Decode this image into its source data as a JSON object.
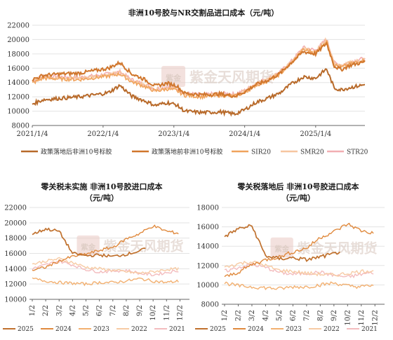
{
  "watermark": {
    "text": "紫金天风期货",
    "seal": "紫金"
  },
  "chart_data": [
    {
      "type": "line",
      "title": "非洲10号胶与NR交割品进口成本（元/吨）",
      "x_ticks": [
        "2021/1/4",
        "2022/1/4",
        "2023/1/4",
        "2024/1/4",
        "2025/1/4"
      ],
      "x_range": [
        "2021-01-04",
        "2025-09-15"
      ],
      "ylim": [
        8000,
        22000
      ],
      "y_ticks": [
        8000,
        10000,
        12000,
        14000,
        16000,
        18000,
        20000,
        22000
      ],
      "grid": true,
      "legend": "bottom",
      "series": [
        {
          "name": "政策落地后非洲10号标胶",
          "color": "#b86a2a",
          "points": [
            [
              "2021-01-04",
              11000
            ],
            [
              "2021-03-01",
              11600
            ],
            [
              "2021-06-01",
              11800
            ],
            [
              "2021-09-01",
              12000
            ],
            [
              "2021-12-01",
              12300
            ],
            [
              "2022-02-01",
              12600
            ],
            [
              "2022-04-01",
              13600
            ],
            [
              "2022-06-01",
              12100
            ],
            [
              "2022-08-01",
              11500
            ],
            [
              "2022-10-01",
              10800
            ],
            [
              "2022-12-01",
              11200
            ],
            [
              "2023-01-15",
              10900
            ],
            [
              "2023-03-01",
              10000
            ],
            [
              "2023-06-01",
              9800
            ],
            [
              "2023-09-01",
              9900
            ],
            [
              "2023-11-15",
              9600
            ],
            [
              "2024-01-04",
              10200
            ],
            [
              "2024-03-01",
              11200
            ],
            [
              "2024-05-01",
              11800
            ],
            [
              "2024-07-01",
              12500
            ],
            [
              "2024-09-01",
              13800
            ],
            [
              "2024-11-01",
              14800
            ],
            [
              "2025-01-04",
              14600
            ],
            [
              "2025-03-01",
              15900
            ],
            [
              "2025-04-10",
              13200
            ],
            [
              "2025-05-15",
              13000
            ],
            [
              "2025-07-01",
              13300
            ],
            [
              "2025-09-15",
              13700
            ]
          ]
        },
        {
          "name": "政策落地前非洲10号标胶",
          "color": "#d0762c",
          "points": [
            [
              "2021-01-04",
              14400
            ],
            [
              "2021-03-01",
              15000
            ],
            [
              "2021-06-01",
              15200
            ],
            [
              "2021-09-01",
              15300
            ],
            [
              "2021-12-01",
              15700
            ],
            [
              "2022-02-01",
              16000
            ],
            [
              "2022-04-01",
              16800
            ],
            [
              "2022-06-01",
              15200
            ],
            [
              "2022-08-01",
              14500
            ],
            [
              "2022-10-01",
              13500
            ],
            [
              "2022-12-01",
              13900
            ],
            [
              "2023-01-15",
              13600
            ],
            [
              "2023-03-01",
              12500
            ],
            [
              "2023-06-01",
              12300
            ],
            [
              "2023-09-01",
              12400
            ],
            [
              "2023-11-15",
              12100
            ],
            [
              "2024-01-04",
              12700
            ],
            [
              "2024-03-01",
              13700
            ],
            [
              "2024-05-01",
              14300
            ],
            [
              "2024-07-01",
              15200
            ],
            [
              "2024-09-01",
              16800
            ],
            [
              "2024-11-01",
              18300
            ],
            [
              "2025-01-04",
              18000
            ],
            [
              "2025-03-01",
              19500
            ],
            [
              "2025-04-10",
              16300
            ],
            [
              "2025-05-15",
              15800
            ],
            [
              "2025-07-01",
              16400
            ],
            [
              "2025-09-15",
              16900
            ]
          ]
        },
        {
          "name": "SIR20",
          "color": "#f0a35c",
          "points": [
            [
              "2021-01-04",
              13900
            ],
            [
              "2021-03-01",
              14600
            ],
            [
              "2021-06-01",
              14500
            ],
            [
              "2021-09-01",
              14400
            ],
            [
              "2021-12-01",
              14700
            ],
            [
              "2022-02-01",
              14900
            ],
            [
              "2022-04-01",
              15200
            ],
            [
              "2022-06-01",
              14100
            ],
            [
              "2022-08-01",
              13500
            ],
            [
              "2022-10-01",
              12800
            ],
            [
              "2022-12-01",
              13100
            ],
            [
              "2023-01-15",
              12900
            ],
            [
              "2023-03-01",
              12200
            ],
            [
              "2023-06-01",
              12000
            ],
            [
              "2023-09-01",
              12200
            ],
            [
              "2023-11-15",
              12100
            ],
            [
              "2024-01-04",
              12600
            ],
            [
              "2024-03-01",
              13600
            ],
            [
              "2024-05-01",
              14200
            ],
            [
              "2024-07-01",
              15100
            ],
            [
              "2024-09-01",
              16700
            ],
            [
              "2024-11-01",
              18600
            ],
            [
              "2025-01-04",
              18200
            ],
            [
              "2025-03-01",
              19800
            ],
            [
              "2025-04-10",
              16500
            ],
            [
              "2025-05-15",
              16100
            ],
            [
              "2025-07-01",
              16600
            ],
            [
              "2025-09-15",
              17100
            ]
          ]
        },
        {
          "name": "SMR20",
          "color": "#f6c6a0",
          "points": [
            [
              "2021-01-04",
              14100
            ],
            [
              "2021-03-01",
              14800
            ],
            [
              "2021-06-01",
              14700
            ],
            [
              "2021-09-01",
              14600
            ],
            [
              "2021-12-01",
              14900
            ],
            [
              "2022-02-01",
              15100
            ],
            [
              "2022-04-01",
              15400
            ],
            [
              "2022-06-01",
              14300
            ],
            [
              "2022-08-01",
              13700
            ],
            [
              "2022-10-01",
              13000
            ],
            [
              "2022-12-01",
              13300
            ],
            [
              "2023-01-15",
              13100
            ],
            [
              "2023-03-01",
              12400
            ],
            [
              "2023-06-01",
              12200
            ],
            [
              "2023-09-01",
              12400
            ],
            [
              "2023-11-15",
              12300
            ],
            [
              "2024-01-04",
              12800
            ],
            [
              "2024-03-01",
              13800
            ],
            [
              "2024-05-01",
              14400
            ],
            [
              "2024-07-01",
              15300
            ],
            [
              "2024-09-01",
              16900
            ],
            [
              "2024-11-01",
              18800
            ],
            [
              "2025-01-04",
              18400
            ],
            [
              "2025-03-01",
              20000
            ],
            [
              "2025-04-10",
              16700
            ],
            [
              "2025-05-15",
              16300
            ],
            [
              "2025-07-01",
              16800
            ],
            [
              "2025-09-15",
              17300
            ]
          ]
        },
        {
          "name": "STR20",
          "color": "#f2aeb2",
          "points": [
            [
              "2021-01-04",
              14200
            ],
            [
              "2021-03-01",
              14900
            ],
            [
              "2021-06-01",
              14800
            ],
            [
              "2021-09-01",
              14700
            ],
            [
              "2021-12-01",
              15000
            ],
            [
              "2022-02-01",
              15200
            ],
            [
              "2022-04-01",
              15500
            ],
            [
              "2022-06-01",
              14400
            ],
            [
              "2022-08-01",
              13800
            ],
            [
              "2022-10-01",
              13100
            ],
            [
              "2022-12-01",
              13400
            ],
            [
              "2023-01-15",
              13200
            ],
            [
              "2023-03-01",
              12500
            ],
            [
              "2023-06-01",
              12300
            ],
            [
              "2023-09-01",
              12500
            ],
            [
              "2023-11-15",
              12400
            ],
            [
              "2024-01-04",
              12900
            ],
            [
              "2024-03-01",
              13900
            ],
            [
              "2024-05-01",
              14500
            ],
            [
              "2024-07-01",
              15400
            ],
            [
              "2024-09-01",
              17000
            ],
            [
              "2024-11-01",
              18900
            ],
            [
              "2025-01-04",
              18500
            ],
            [
              "2025-03-01",
              20100
            ],
            [
              "2025-04-10",
              16800
            ],
            [
              "2025-05-15",
              16400
            ],
            [
              "2025-07-01",
              16900
            ],
            [
              "2025-09-15",
              17400
            ]
          ]
        }
      ]
    },
    {
      "type": "line",
      "title": [
        "零关税未实施 非洲10号胶进口成本",
        "（元/吨）"
      ],
      "categories": [
        "1/2",
        "2/2",
        "3/2",
        "4/2",
        "5/2",
        "6/2",
        "7/2",
        "8/2",
        "9/2",
        "10/2",
        "11/2",
        "12/2"
      ],
      "ylim": [
        10000,
        22000
      ],
      "y_ticks": [
        10000,
        12000,
        14000,
        16000,
        18000,
        20000,
        22000
      ],
      "grid": true,
      "legend": "bottom",
      "series": [
        {
          "name": "2025",
          "color": "#c0712e",
          "values": [
            18500,
            19200,
            18900,
            16000,
            15700,
            15800,
            15600,
            15900,
            16300,
            17200,
            17800,
            18200
          ],
          "end_month": 9.5,
          "note": "ends 2025-09"
        },
        {
          "name": "2024",
          "color": "#e08a3e",
          "values": [
            13800,
            14200,
            15000,
            15600,
            15900,
            16400,
            16800,
            17900,
            18600,
            19600,
            18900,
            18600
          ]
        },
        {
          "name": "2023",
          "color": "#f2b071",
          "values": [
            12700,
            12400,
            12200,
            12100,
            12000,
            12200,
            12200,
            12400,
            12700,
            12400,
            12200,
            12400
          ]
        },
        {
          "name": "2022",
          "color": "#f7cba4",
          "values": [
            14600,
            15000,
            15300,
            14800,
            14200,
            14000,
            13800,
            13600,
            13400,
            13600,
            13900,
            14000
          ]
        },
        {
          "name": "2021",
          "color": "#f3bcbe",
          "values": [
            14000,
            14500,
            15000,
            14500,
            13900,
            13600,
            13700,
            13800,
            13400,
            13200,
            13500,
            13800
          ]
        }
      ]
    },
    {
      "type": "line",
      "title": [
        "零关税落地后 非洲10号胶进口成本",
        "（元/吨）"
      ],
      "categories": [
        "1/2",
        "2/2",
        "3/2",
        "4/2",
        "5/2",
        "6/2",
        "7/2",
        "8/2",
        "9/2",
        "10/2",
        "11/2",
        "12/2"
      ],
      "ylim": [
        8000,
        18000
      ],
      "y_ticks": [
        8000,
        10000,
        12000,
        14000,
        16000,
        18000
      ],
      "grid": true,
      "legend": "bottom",
      "series": [
        {
          "name": "2025",
          "color": "#c0712e",
          "values": [
            15000,
            15800,
            16100,
            13000,
            12700,
            12800,
            12600,
            12900,
            13200,
            13800,
            14300,
            14700
          ]
        },
        {
          "name": "2024",
          "color": "#e08a3e",
          "values": [
            10800,
            11300,
            12100,
            12600,
            12900,
            13400,
            13800,
            14900,
            15500,
            16300,
            15600,
            15300
          ]
        },
        {
          "name": "2023",
          "color": "#f2b071",
          "values": [
            10200,
            9900,
            9800,
            9700,
            9600,
            9800,
            9800,
            10000,
            10200,
            9900,
            9800,
            10000
          ]
        },
        {
          "name": "2022",
          "color": "#f7cba4",
          "values": [
            11800,
            12200,
            12400,
            12000,
            11500,
            11400,
            11200,
            11100,
            11000,
            11200,
            11400,
            11500
          ]
        },
        {
          "name": "2021",
          "color": "#f3bcbe",
          "values": [
            11400,
            11800,
            12100,
            11800,
            11300,
            11100,
            11200,
            11300,
            11000,
            10800,
            11100,
            11300
          ]
        }
      ]
    }
  ]
}
